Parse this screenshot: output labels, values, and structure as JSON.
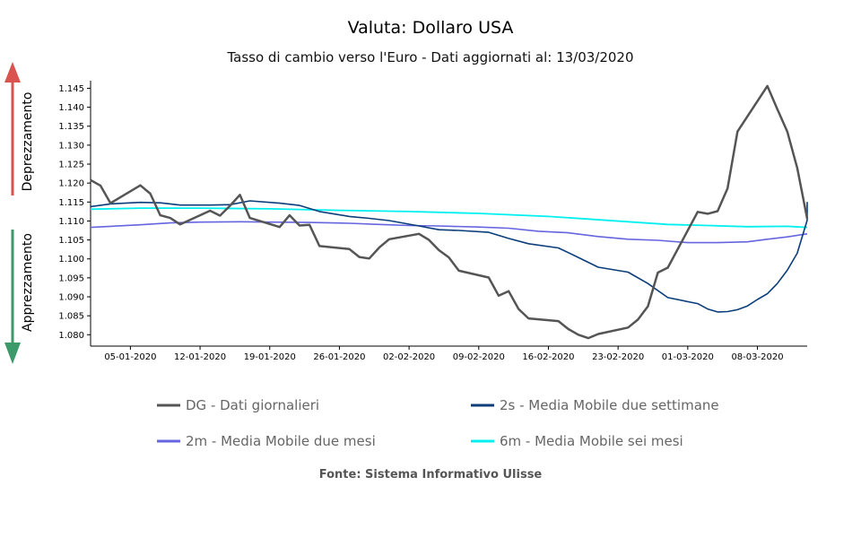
{
  "chart_data": {
    "type": "line",
    "title": "Valuta: Dollaro USA",
    "subtitle": "Tasso di cambio verso l'Euro - Dati aggiornati al: 13/03/2020",
    "source": "Fonte: Sistema Informativo Ulisse",
    "side_labels": {
      "up": "Deprezzamento",
      "down": "Apprezzamento",
      "up_color": "#d9534f",
      "down_color": "#3c9a6a"
    },
    "xlabel": "",
    "ylabel": "",
    "xlim": [
      "2020-01-01",
      "2020-03-13"
    ],
    "ylim": [
      1.077,
      1.147
    ],
    "x_ticks": [
      {
        "date": "2020-01-05",
        "label": "05-01-2020"
      },
      {
        "date": "2020-01-12",
        "label": "12-01-2020"
      },
      {
        "date": "2020-01-19",
        "label": "19-01-2020"
      },
      {
        "date": "2020-01-26",
        "label": "26-01-2020"
      },
      {
        "date": "2020-02-02",
        "label": "02-02-2020"
      },
      {
        "date": "2020-02-09",
        "label": "09-02-2020"
      },
      {
        "date": "2020-02-16",
        "label": "16-02-2020"
      },
      {
        "date": "2020-02-23",
        "label": "23-02-2020"
      },
      {
        "date": "2020-03-01",
        "label": "01-03-2020"
      },
      {
        "date": "2020-03-08",
        "label": "08-03-2020"
      }
    ],
    "y_ticks": [
      {
        "value": 1.08,
        "label": "1.080"
      },
      {
        "value": 1.085,
        "label": "1.085"
      },
      {
        "value": 1.09,
        "label": "1.090"
      },
      {
        "value": 1.095,
        "label": "1.095"
      },
      {
        "value": 1.1,
        "label": "1.100"
      },
      {
        "value": 1.105,
        "label": "1.105"
      },
      {
        "value": 1.11,
        "label": "1.110"
      },
      {
        "value": 1.115,
        "label": "1.115"
      },
      {
        "value": 1.12,
        "label": "1.120"
      },
      {
        "value": 1.125,
        "label": "1.125"
      },
      {
        "value": 1.13,
        "label": "1.130"
      },
      {
        "value": 1.135,
        "label": "1.135"
      },
      {
        "value": 1.14,
        "label": "1.140"
      },
      {
        "value": 1.145,
        "label": "1.145"
      }
    ],
    "legend_position": "bottom",
    "series": [
      {
        "name": "DG - Dati giornalieri",
        "color": "#555555",
        "width": 2.5,
        "points": [
          [
            "2020-01-01",
            1.1208
          ],
          [
            "2020-01-02",
            1.1193
          ],
          [
            "2020-01-03",
            1.1147
          ],
          [
            "2020-01-06",
            1.1194
          ],
          [
            "2020-01-07",
            1.1172
          ],
          [
            "2020-01-08",
            1.1115
          ],
          [
            "2020-01-09",
            1.1108
          ],
          [
            "2020-01-10",
            1.1091
          ],
          [
            "2020-01-13",
            1.1127
          ],
          [
            "2020-01-14",
            1.1114
          ],
          [
            "2020-01-15",
            1.114
          ],
          [
            "2020-01-16",
            1.1169
          ],
          [
            "2020-01-17",
            1.1108
          ],
          [
            "2020-01-20",
            1.1084
          ],
          [
            "2020-01-21",
            1.1115
          ],
          [
            "2020-01-22",
            1.1088
          ],
          [
            "2020-01-23",
            1.109
          ],
          [
            "2020-01-24",
            1.1034
          ],
          [
            "2020-01-27",
            1.1026
          ],
          [
            "2020-01-28",
            1.1005
          ],
          [
            "2020-01-29",
            1.1001
          ],
          [
            "2020-01-30",
            1.103
          ],
          [
            "2020-01-31",
            1.1052
          ],
          [
            "2020-02-03",
            1.1066
          ],
          [
            "2020-02-04",
            1.105
          ],
          [
            "2020-02-05",
            1.1023
          ],
          [
            "2020-02-06",
            1.1004
          ],
          [
            "2020-02-07",
            1.0969
          ],
          [
            "2020-02-10",
            1.0951
          ],
          [
            "2020-02-11",
            1.0903
          ],
          [
            "2020-02-12",
            1.0915
          ],
          [
            "2020-02-13",
            1.0868
          ],
          [
            "2020-02-14",
            1.0843
          ],
          [
            "2020-02-17",
            1.0836
          ],
          [
            "2020-02-18",
            1.0815
          ],
          [
            "2020-02-19",
            1.08
          ],
          [
            "2020-02-20",
            1.0791
          ],
          [
            "2020-02-21",
            1.0802
          ],
          [
            "2020-02-24",
            1.0819
          ],
          [
            "2020-02-25",
            1.084
          ],
          [
            "2020-02-26",
            1.0875
          ],
          [
            "2020-02-27",
            1.0964
          ],
          [
            "2020-02-28",
            1.0977
          ],
          [
            "2020-03-02",
            1.1124
          ],
          [
            "2020-03-03",
            1.1119
          ],
          [
            "2020-03-04",
            1.1126
          ],
          [
            "2020-03-05",
            1.1186
          ],
          [
            "2020-03-06",
            1.1336
          ],
          [
            "2020-03-09",
            1.1456
          ],
          [
            "2020-03-10",
            1.1395
          ],
          [
            "2020-03-11",
            1.1336
          ],
          [
            "2020-03-12",
            1.124
          ],
          [
            "2020-03-13",
            1.1106
          ]
        ]
      },
      {
        "name": "2s - Media Mobile due settimane",
        "color": "#0b3d7a",
        "width": 1.6,
        "points": [
          [
            "2020-01-01",
            1.1138
          ],
          [
            "2020-01-03",
            1.1145
          ],
          [
            "2020-01-06",
            1.1149
          ],
          [
            "2020-01-08",
            1.1148
          ],
          [
            "2020-01-10",
            1.1142
          ],
          [
            "2020-01-13",
            1.1142
          ],
          [
            "2020-01-15",
            1.1143
          ],
          [
            "2020-01-17",
            1.1153
          ],
          [
            "2020-01-20",
            1.1147
          ],
          [
            "2020-01-22",
            1.1141
          ],
          [
            "2020-01-24",
            1.1125
          ],
          [
            "2020-01-27",
            1.1112
          ],
          [
            "2020-01-29",
            1.1107
          ],
          [
            "2020-01-31",
            1.1101
          ],
          [
            "2020-02-03",
            1.1087
          ],
          [
            "2020-02-05",
            1.1077
          ],
          [
            "2020-02-07",
            1.1075
          ],
          [
            "2020-02-10",
            1.107
          ],
          [
            "2020-02-12",
            1.1054
          ],
          [
            "2020-02-14",
            1.104
          ],
          [
            "2020-02-17",
            1.1029
          ],
          [
            "2020-02-19",
            1.1004
          ],
          [
            "2020-02-21",
            1.0978
          ],
          [
            "2020-02-24",
            1.0965
          ],
          [
            "2020-02-26",
            1.0935
          ],
          [
            "2020-02-28",
            1.0898
          ],
          [
            "2020-03-02",
            1.0882
          ],
          [
            "2020-03-03",
            1.0868
          ],
          [
            "2020-03-04",
            1.086
          ],
          [
            "2020-03-05",
            1.0861
          ],
          [
            "2020-03-06",
            1.0866
          ],
          [
            "2020-03-07",
            1.0876
          ],
          [
            "2020-03-08",
            1.0893
          ],
          [
            "2020-03-09",
            1.0908
          ],
          [
            "2020-03-10",
            1.0935
          ],
          [
            "2020-03-11",
            1.097
          ],
          [
            "2020-03-12",
            1.1015
          ],
          [
            "2020-03-13",
            1.1102
          ],
          [
            "2020-03-14",
            1.1127
          ],
          [
            "2020-03-15",
            1.115
          ]
        ]
      },
      {
        "name": "2m - Media Mobile due mesi",
        "color": "#6565e0",
        "width": 1.6,
        "points": [
          [
            "2020-01-01",
            1.1083
          ],
          [
            "2020-01-03",
            1.1086
          ],
          [
            "2020-01-06",
            1.109
          ],
          [
            "2020-01-09",
            1.1095
          ],
          [
            "2020-01-12",
            1.1097
          ],
          [
            "2020-01-16",
            1.1098
          ],
          [
            "2020-01-19",
            1.1097
          ],
          [
            "2020-01-23",
            1.1096
          ],
          [
            "2020-01-27",
            1.1094
          ],
          [
            "2020-01-30",
            1.1091
          ],
          [
            "2020-02-02",
            1.1088
          ],
          [
            "2020-02-05",
            1.1087
          ],
          [
            "2020-02-09",
            1.1084
          ],
          [
            "2020-02-12",
            1.1081
          ],
          [
            "2020-02-15",
            1.1073
          ],
          [
            "2020-02-18",
            1.1069
          ],
          [
            "2020-02-21",
            1.1059
          ],
          [
            "2020-02-24",
            1.1052
          ],
          [
            "2020-02-27",
            1.1049
          ],
          [
            "2020-03-01",
            1.1043
          ],
          [
            "2020-03-04",
            1.1043
          ],
          [
            "2020-03-07",
            1.1045
          ],
          [
            "2020-03-09",
            1.1052
          ],
          [
            "2020-03-11",
            1.1058
          ],
          [
            "2020-03-13",
            1.1066
          ],
          [
            "2020-03-15",
            1.1066
          ]
        ]
      },
      {
        "name": "6m - Media Mobile sei mesi",
        "color": "#00f0f0",
        "width": 1.8,
        "points": [
          [
            "2020-01-01",
            1.1131
          ],
          [
            "2020-01-06",
            1.1134
          ],
          [
            "2020-01-12",
            1.1134
          ],
          [
            "2020-01-19",
            1.1132
          ],
          [
            "2020-01-26",
            1.1128
          ],
          [
            "2020-02-02",
            1.1125
          ],
          [
            "2020-02-09",
            1.112
          ],
          [
            "2020-02-16",
            1.1112
          ],
          [
            "2020-02-20",
            1.1105
          ],
          [
            "2020-02-24",
            1.1098
          ],
          [
            "2020-02-28",
            1.1091
          ],
          [
            "2020-03-03",
            1.1088
          ],
          [
            "2020-03-07",
            1.1085
          ],
          [
            "2020-03-11",
            1.1086
          ],
          [
            "2020-03-15",
            1.1083
          ]
        ]
      }
    ]
  }
}
